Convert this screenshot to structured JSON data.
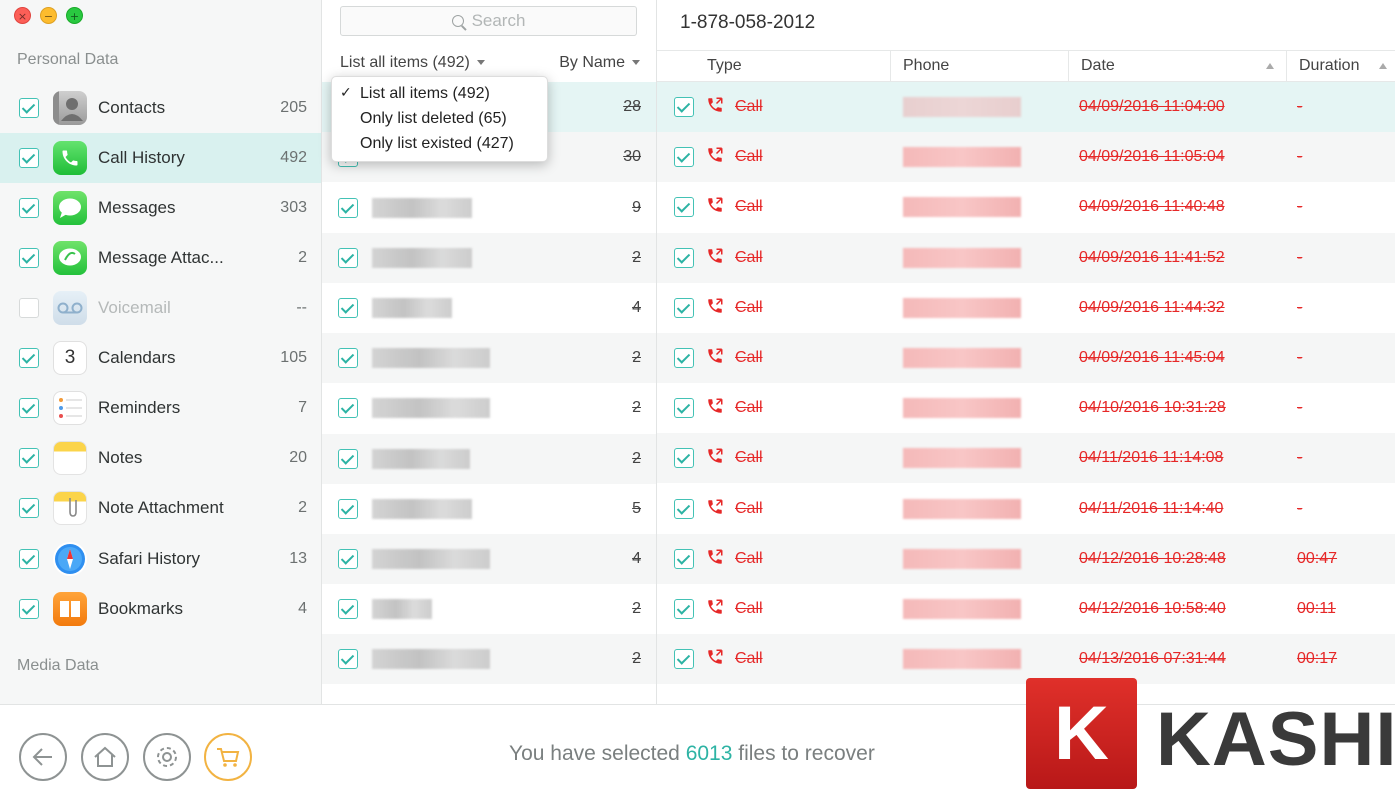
{
  "sidebar": {
    "personal_title": "Personal Data",
    "media_title": "Media Data",
    "items": [
      {
        "label": "Contacts",
        "count": "205",
        "checked": true,
        "active": false
      },
      {
        "label": "Call History",
        "count": "492",
        "checked": true,
        "active": true
      },
      {
        "label": "Messages",
        "count": "303",
        "checked": true,
        "active": false
      },
      {
        "label": "Message Attac...",
        "count": "2",
        "checked": true,
        "active": false
      },
      {
        "label": "Voicemail",
        "count": "--",
        "checked": false,
        "active": false
      },
      {
        "label": "Calendars",
        "count": "105",
        "checked": true,
        "active": false
      },
      {
        "label": "Reminders",
        "count": "7",
        "checked": true,
        "active": false
      },
      {
        "label": "Notes",
        "count": "20",
        "checked": true,
        "active": false
      },
      {
        "label": "Note Attachment",
        "count": "2",
        "checked": true,
        "active": false
      },
      {
        "label": "Safari History",
        "count": "13",
        "checked": true,
        "active": false
      },
      {
        "label": "Bookmarks",
        "count": "4",
        "checked": true,
        "active": false
      }
    ],
    "calendar_day": "3"
  },
  "middle": {
    "search_placeholder": "Search",
    "filter_label": "List all items (492)",
    "sort_label": "By Name",
    "counts": [
      "28",
      "30",
      "9",
      "2",
      "4",
      "2",
      "2",
      "2",
      "5",
      "4",
      "2",
      "2"
    ]
  },
  "dropdown": {
    "items": [
      {
        "label": "List all items (492)",
        "selected": true
      },
      {
        "label": "Only list deleted (65)",
        "selected": false
      },
      {
        "label": "Only list existed (427)",
        "selected": false
      }
    ],
    "check_glyph": "✓"
  },
  "detail": {
    "phone_title": "1-878-058-2012",
    "columns": {
      "type": "Type",
      "phone": "Phone",
      "date": "Date",
      "duration": "Duration"
    },
    "rows": [
      {
        "type": "Call",
        "date": "04/09/2016 11:04:00",
        "duration": "-"
      },
      {
        "type": "Call",
        "date": "04/09/2016 11:05:04",
        "duration": "-"
      },
      {
        "type": "Call",
        "date": "04/09/2016 11:40:48",
        "duration": "-"
      },
      {
        "type": "Call",
        "date": "04/09/2016 11:41:52",
        "duration": "-"
      },
      {
        "type": "Call",
        "date": "04/09/2016 11:44:32",
        "duration": "-"
      },
      {
        "type": "Call",
        "date": "04/09/2016 11:45:04",
        "duration": "-"
      },
      {
        "type": "Call",
        "date": "04/10/2016 10:31:28",
        "duration": "-"
      },
      {
        "type": "Call",
        "date": "04/11/2016 11:14:08",
        "duration": "-"
      },
      {
        "type": "Call",
        "date": "04/11/2016 11:14:40",
        "duration": "-"
      },
      {
        "type": "Call",
        "date": "04/12/2016 10:28:48",
        "duration": "00:47"
      },
      {
        "type": "Call",
        "date": "04/12/2016 10:58:40",
        "duration": "00:11"
      },
      {
        "type": "Call",
        "date": "04/13/2016 07:31:44",
        "duration": "00:17"
      }
    ]
  },
  "footer": {
    "status_prefix": "You have selected ",
    "status_count": "6013",
    "status_suffix": " files to recover"
  },
  "watermark": {
    "letter": "K",
    "text": "KASHI"
  },
  "colors": {
    "accent": "#2db3a4",
    "deleted": "#e62828",
    "active_row": "#d9f1ef"
  }
}
